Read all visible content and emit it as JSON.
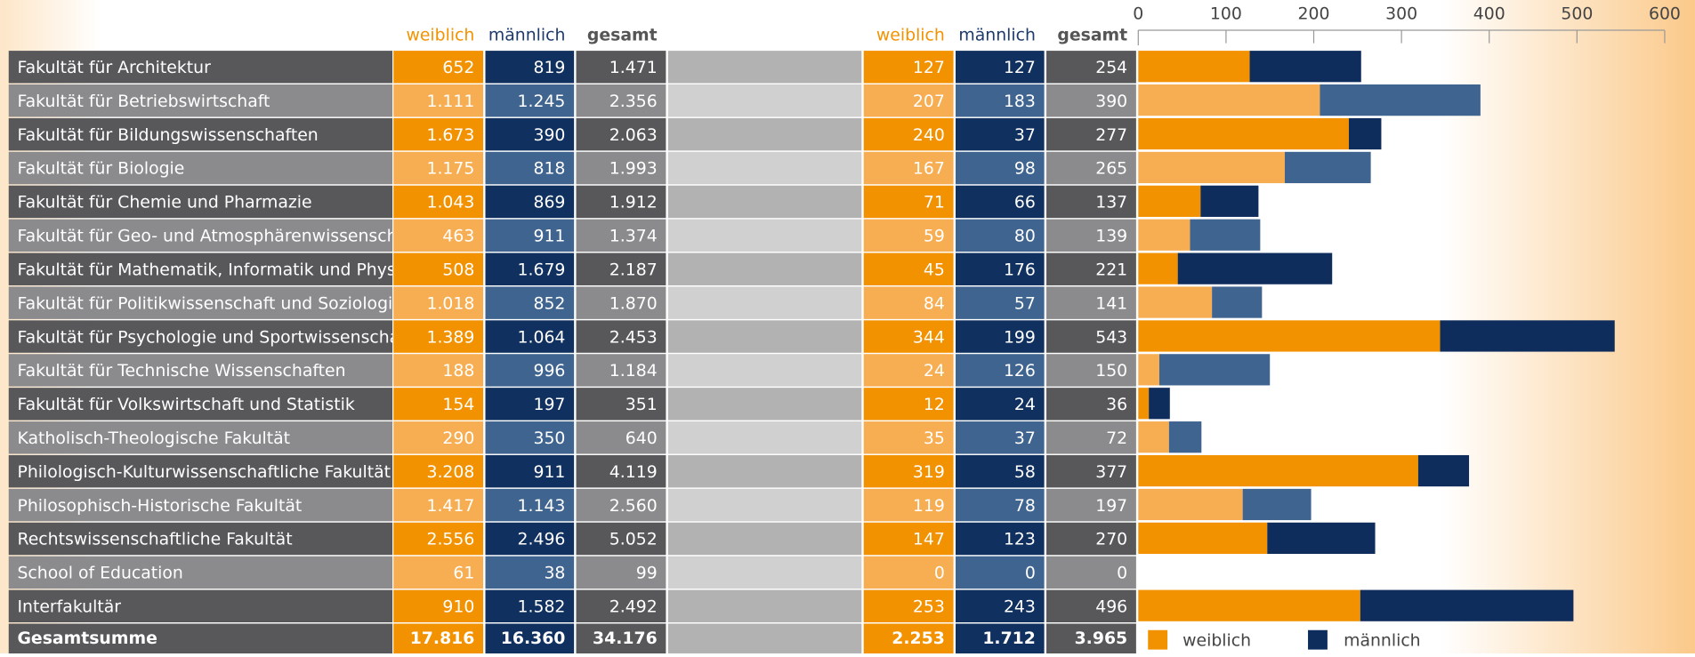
{
  "table": {
    "headers": [
      "weiblich",
      "männlich",
      "gesamt"
    ],
    "headers_2_total": "gesamt",
    "rows": [
      [
        "652",
        "819",
        "1.471",
        "254"
      ],
      [
        "1.111",
        "1.245",
        "2.356",
        "390"
      ],
      [
        "1.673",
        "390",
        "2.063",
        "277"
      ],
      [
        "1.175",
        "818",
        "1.993",
        "265"
      ],
      [
        "1.043",
        "869",
        "1.912",
        "137"
      ],
      [
        "463",
        "911",
        "1.374",
        "139"
      ],
      [
        "508",
        "1.679",
        "2.187",
        "221"
      ],
      [
        "1.018",
        "852",
        "1.870",
        "141"
      ],
      [
        "1.389",
        "1.064",
        "2.453",
        "543"
      ],
      [
        "188",
        "996",
        "1.184",
        "150"
      ],
      [
        "154",
        "197",
        "351",
        "36"
      ],
      [
        "290",
        "350",
        "640",
        "72"
      ],
      [
        "3.208",
        "911",
        "4.119",
        "377"
      ],
      [
        "1.417",
        "1.143",
        "2.560",
        "197"
      ],
      [
        "2.556",
        "2.496",
        "5.052",
        "270"
      ],
      [
        "61",
        "38",
        "99",
        "0"
      ],
      [
        "910",
        "1.582",
        "2.492",
        "496"
      ]
    ],
    "total": [
      "Gesamtsumme",
      "17.816",
      "16.360",
      "34.176",
      "2.253",
      "1.712",
      "3.965"
    ]
  },
  "chart_data": {
    "type": "bar",
    "orientation": "horizontal",
    "stacked": true,
    "categories": [
      "Fakultät für Architektur",
      "Fakultät für Betriebswirtschaft",
      "Fakultät für Bildungswissenschaften",
      "Fakultät für Biologie",
      "Fakultät für Chemie und Pharmazie",
      "Fakultät für Geo- und Atmosphärenwissenschaften",
      "Fakultät für Mathematik, Informatik und Physik",
      "Fakultät für Politikwissenschaft und Soziologie",
      "Fakultät für Psychologie und Sportwissenschaft",
      "Fakultät für Technische Wissenschaften",
      "Fakultät für Volkswirtschaft und Statistik",
      "Katholisch-Theologische Fakultät",
      "Philologisch-Kulturwissenschaftliche Fakultät",
      "Philosophisch-Historische Fakultät",
      "Rechtswissenschaftliche Fakultät",
      "School of Education",
      "Interfakultär"
    ],
    "series": [
      {
        "name": "weiblich",
        "color": "#f39200",
        "alt_color": "#f7ae52",
        "values": [
          127,
          207,
          240,
          167,
          71,
          59,
          45,
          84,
          344,
          24,
          12,
          35,
          319,
          119,
          147,
          0,
          253
        ]
      },
      {
        "name": "männlich",
        "color": "#0f2d5c",
        "alt_color": "#3f6490",
        "values": [
          127,
          183,
          37,
          98,
          66,
          80,
          176,
          57,
          199,
          126,
          24,
          37,
          58,
          78,
          123,
          0,
          243
        ]
      }
    ],
    "xlim": [
      0,
      600
    ],
    "xticks": [
      0,
      100,
      200,
      300,
      400,
      500,
      600
    ],
    "legend": "bottom-right"
  }
}
